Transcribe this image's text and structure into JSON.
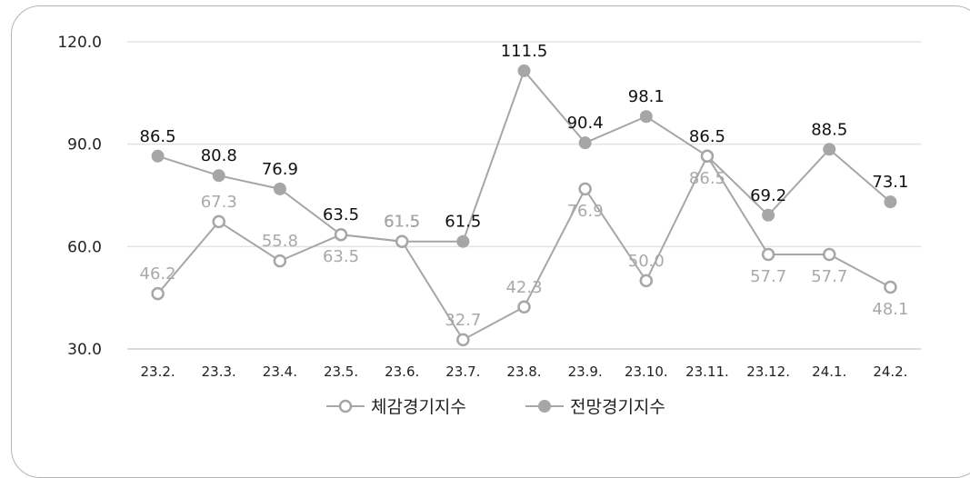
{
  "chart_data": {
    "type": "line",
    "categories": [
      "23.2.",
      "23.3.",
      "23.4.",
      "23.5.",
      "23.6.",
      "23.7.",
      "23.8.",
      "23.9.",
      "23.10.",
      "23.11.",
      "23.12.",
      "24.1.",
      "24.2."
    ],
    "series": [
      {
        "name": "체감경기지수",
        "values": [
          46.2,
          67.3,
          55.8,
          63.5,
          61.5,
          32.7,
          42.3,
          76.9,
          50.0,
          86.5,
          57.7,
          57.7,
          48.1
        ],
        "labels": [
          "46.2",
          "67.3",
          "55.8",
          "63.5",
          "61.5",
          "32.7",
          "42.3",
          "76.9",
          "50.0",
          "86.5",
          "57.7",
          "57.7",
          "48.1"
        ],
        "marker": "hollow-circle",
        "color": "#a6a6a6"
      },
      {
        "name": "전망경기지수",
        "values": [
          86.5,
          80.8,
          76.9,
          63.5,
          61.5,
          61.5,
          111.5,
          90.4,
          98.1,
          86.5,
          69.2,
          88.5,
          73.1
        ],
        "labels": [
          "86.5",
          "80.8",
          "76.9",
          "63.5",
          "61.5",
          "61.5",
          "111.5",
          "90.4",
          "98.1",
          "86.5",
          "69.2",
          "88.5",
          "73.1"
        ],
        "marker": "filled-circle",
        "color": "#a6a6a6"
      }
    ],
    "yticks": [
      "120.0",
      "90.0",
      "60.0",
      "30.0"
    ],
    "ylim": [
      30,
      120
    ],
    "grid": true,
    "legend": "bottom-center"
  }
}
